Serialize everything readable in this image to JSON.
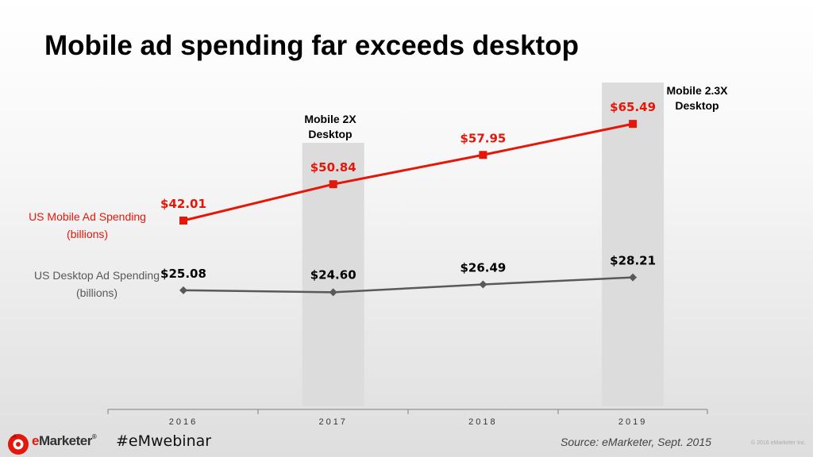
{
  "slide": {
    "title": "Mobile ad spending far exceeds desktop"
  },
  "chart_data": {
    "type": "line",
    "title": "Mobile ad spending far exceeds desktop",
    "categories": [
      "2016",
      "2017",
      "2018",
      "2019"
    ],
    "series": [
      {
        "name": "US Mobile Ad Spending (billions)",
        "color": "#e3170a",
        "marker": "square",
        "values": [
          42.01,
          50.84,
          57.95,
          65.49
        ],
        "labels": [
          "$42.01",
          "$50.84",
          "$57.95",
          "$65.49"
        ]
      },
      {
        "name": "US Desktop Ad Spending (billions)",
        "color": "#595959",
        "marker": "diamond",
        "values": [
          25.08,
          24.6,
          26.49,
          28.21
        ],
        "labels": [
          "$25.08",
          "$24.60",
          "$26.49",
          "$28.21"
        ]
      }
    ],
    "highlights": [
      {
        "category": "2017",
        "note_line1": "Mobile 2X",
        "note_line2": "Desktop"
      },
      {
        "category": "2019",
        "note_line1": "Mobile 2.3X",
        "note_line2": "Desktop"
      }
    ],
    "ylim": [
      0,
      75
    ],
    "grid": false,
    "legend": "left"
  },
  "footer": {
    "brand": "eMarketer",
    "brand_registered": "®",
    "hashtag": "#eMwebinar",
    "source": "Source: eMarketer, Sept. 2015",
    "copyright": "© 2016 eMarketer Inc."
  },
  "colors": {
    "mobile": "#e3170a",
    "desktop": "#595959",
    "highlight": "#dcdcdc",
    "axis": "#808080",
    "brand": "#e3170a"
  },
  "icons": {
    "logo": "emarketer-logo-icon"
  }
}
